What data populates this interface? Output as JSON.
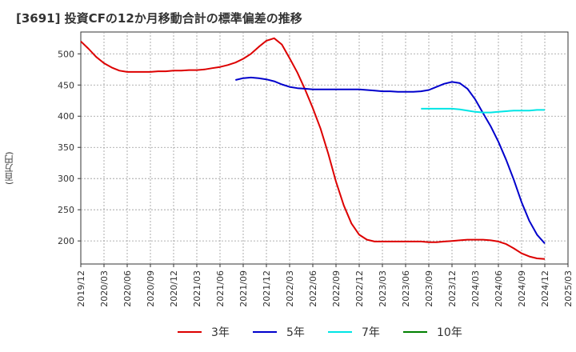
{
  "title": "[3691]  投資CFの12か月移動合計の標準偏差の推移",
  "chart_data": {
    "type": "line",
    "title": "[3691]  投資CFの12か月移動合計の標準偏差の推移",
    "xlabel": "",
    "ylabel": "(百万円)",
    "ylim": [
      163,
      535
    ],
    "yticks": [
      200,
      250,
      300,
      350,
      400,
      450,
      500
    ],
    "xticks": [
      "2019/12",
      "2020/03",
      "2020/06",
      "2020/09",
      "2020/12",
      "2021/03",
      "2021/06",
      "2021/09",
      "2021/12",
      "2022/03",
      "2022/06",
      "2022/09",
      "2022/12",
      "2023/03",
      "2023/06",
      "2023/09",
      "2023/12",
      "2024/03",
      "2024/06",
      "2024/09",
      "2024/12",
      "2025/03"
    ],
    "grid": true,
    "legend_position": "bottom",
    "series": [
      {
        "name": "3年",
        "color": "#dd0000",
        "x": [
          "2019/12",
          "2020/01",
          "2020/02",
          "2020/03",
          "2020/04",
          "2020/05",
          "2020/06",
          "2020/07",
          "2020/08",
          "2020/09",
          "2020/10",
          "2020/11",
          "2020/12",
          "2021/01",
          "2021/02",
          "2021/03",
          "2021/04",
          "2021/05",
          "2021/06",
          "2021/07",
          "2021/08",
          "2021/09",
          "2021/10",
          "2021/11",
          "2021/12",
          "2022/01",
          "2022/02",
          "2022/03",
          "2022/04",
          "2022/05",
          "2022/06",
          "2022/07",
          "2022/08",
          "2022/09",
          "2022/10",
          "2022/11",
          "2022/12",
          "2023/01",
          "2023/02",
          "2023/03",
          "2023/04",
          "2023/05",
          "2023/06",
          "2023/07",
          "2023/08",
          "2023/09",
          "2023/10",
          "2023/11",
          "2023/12",
          "2024/01",
          "2024/02",
          "2024/03",
          "2024/04",
          "2024/05",
          "2024/06",
          "2024/07",
          "2024/08",
          "2024/09",
          "2024/10",
          "2024/11",
          "2024/12"
        ],
        "values": [
          520,
          508,
          495,
          485,
          478,
          473,
          471,
          471,
          471,
          471,
          472,
          472,
          473,
          473,
          474,
          474,
          475,
          477,
          479,
          482,
          486,
          492,
          500,
          511,
          521,
          525,
          515,
          493,
          470,
          443,
          413,
          380,
          340,
          295,
          257,
          228,
          210,
          202,
          199,
          199,
          199,
          199,
          199,
          199,
          199,
          198,
          198,
          199,
          200,
          201,
          202,
          202,
          202,
          201,
          199,
          195,
          188,
          180,
          175,
          172,
          171
        ]
      },
      {
        "name": "5年",
        "color": "#0000cc",
        "x": [
          "2021/08",
          "2021/09",
          "2021/10",
          "2021/11",
          "2021/12",
          "2022/01",
          "2022/02",
          "2022/03",
          "2022/04",
          "2022/05",
          "2022/06",
          "2022/07",
          "2022/08",
          "2022/09",
          "2022/10",
          "2022/11",
          "2022/12",
          "2023/01",
          "2023/02",
          "2023/03",
          "2023/04",
          "2023/05",
          "2023/06",
          "2023/07",
          "2023/08",
          "2023/09",
          "2023/10",
          "2023/11",
          "2023/12",
          "2024/01",
          "2024/02",
          "2024/03",
          "2024/04",
          "2024/05",
          "2024/06",
          "2024/07",
          "2024/08",
          "2024/09",
          "2024/10",
          "2024/11",
          "2024/12"
        ],
        "values": [
          458,
          461,
          462,
          461,
          459,
          456,
          451,
          447,
          445,
          444,
          443,
          443,
          443,
          443,
          443,
          443,
          443,
          442,
          441,
          440,
          440,
          439,
          439,
          439,
          440,
          442,
          447,
          452,
          455,
          453,
          444,
          427,
          405,
          384,
          359,
          330,
          298,
          262,
          232,
          210,
          196
        ]
      },
      {
        "name": "7年",
        "color": "#00e5e5",
        "x": [
          "2023/08",
          "2023/09",
          "2023/10",
          "2023/11",
          "2023/12",
          "2024/01",
          "2024/02",
          "2024/03",
          "2024/04",
          "2024/05",
          "2024/06",
          "2024/07",
          "2024/08",
          "2024/09",
          "2024/10",
          "2024/11",
          "2024/12"
        ],
        "values": [
          412,
          412,
          412,
          412,
          412,
          411,
          409,
          407,
          406,
          406,
          407,
          408,
          409,
          409,
          409,
          410,
          410
        ]
      },
      {
        "name": "10年",
        "color": "#008000",
        "x": [],
        "values": []
      }
    ]
  }
}
